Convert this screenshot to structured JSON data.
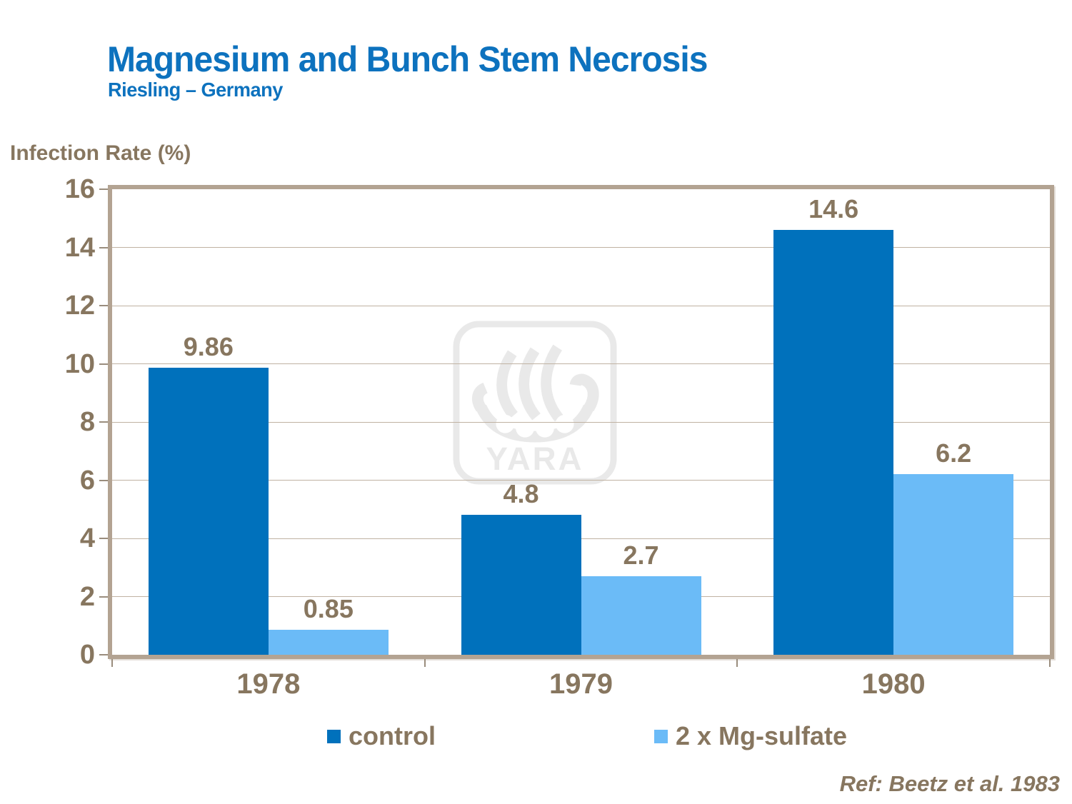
{
  "slide": {
    "title": "Magnesium and Bunch Stem Necrosis",
    "subtitle": "Riesling – Germany",
    "reference": "Ref: Beetz et al. 1983"
  },
  "watermark": {
    "text": "YARA"
  },
  "colors": {
    "title_blue": "#0D72BE",
    "label_brown": "#87765F",
    "control_blue": "#0071BC",
    "mg_sulfate_blue": "#6BBBF7",
    "gridline_tan": "#C0B2A2",
    "frame_tan": "#B3A392",
    "watermark_gray": "#E9E9E9"
  },
  "chart_data": {
    "type": "bar",
    "title": "Magnesium and Bunch Stem Necrosis",
    "subtitle": "Riesling – Germany",
    "xlabel": "",
    "ylabel": "Infection Rate (%)",
    "categories": [
      "1978",
      "1979",
      "1980"
    ],
    "series": [
      {
        "name": "control",
        "color": "#0071BC",
        "values": [
          9.86,
          4.8,
          14.6
        ]
      },
      {
        "name": "2 x Mg-sulfate",
        "color": "#6BBBF7",
        "values": [
          0.85,
          2.7,
          6.2
        ]
      }
    ],
    "ylim": [
      0,
      16
    ],
    "yticks": [
      0,
      2,
      4,
      6,
      8,
      10,
      12,
      14,
      16
    ],
    "grid": true,
    "grid_interval": 2,
    "bar_value_labels": true,
    "legend_position": "bottom",
    "reference": "Ref: Beetz et al. 1983"
  }
}
